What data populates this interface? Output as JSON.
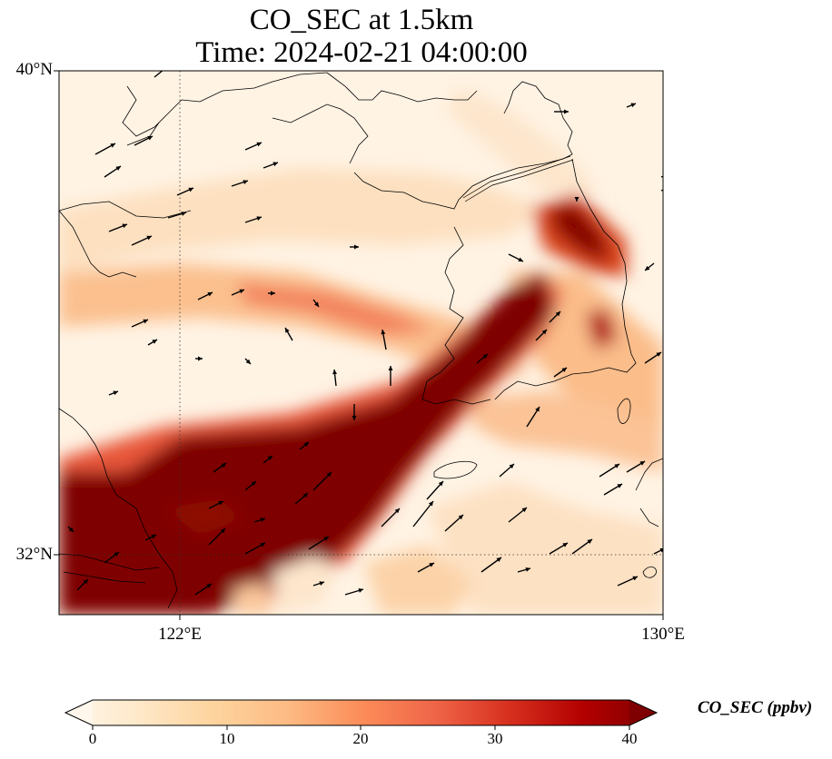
{
  "title_line1": "CO_SEC at 1.5km",
  "title_line2": "Time: 2024-02-21 04:00:00",
  "lat_labels": [
    "40°N",
    "32°N"
  ],
  "lon_labels": [
    "122°E",
    "130°E"
  ],
  "colorbar": {
    "label": "CO_SEC (ppbv)",
    "ticks": [
      "0",
      "10",
      "20",
      "30",
      "40"
    ],
    "min": 0,
    "max": 40,
    "colormap": "OrRd",
    "colors": [
      "#fff7ec",
      "#fee8c8",
      "#fdd49e",
      "#fdbb84",
      "#fc8d59",
      "#ef6548",
      "#d7301f",
      "#b30000",
      "#7f0000"
    ]
  },
  "map": {
    "lon_range": [
      120,
      130
    ],
    "lat_range": [
      31,
      40
    ],
    "gridlines": "dotted at 122°E and 32°N",
    "plume_description_hidden": true
  }
}
